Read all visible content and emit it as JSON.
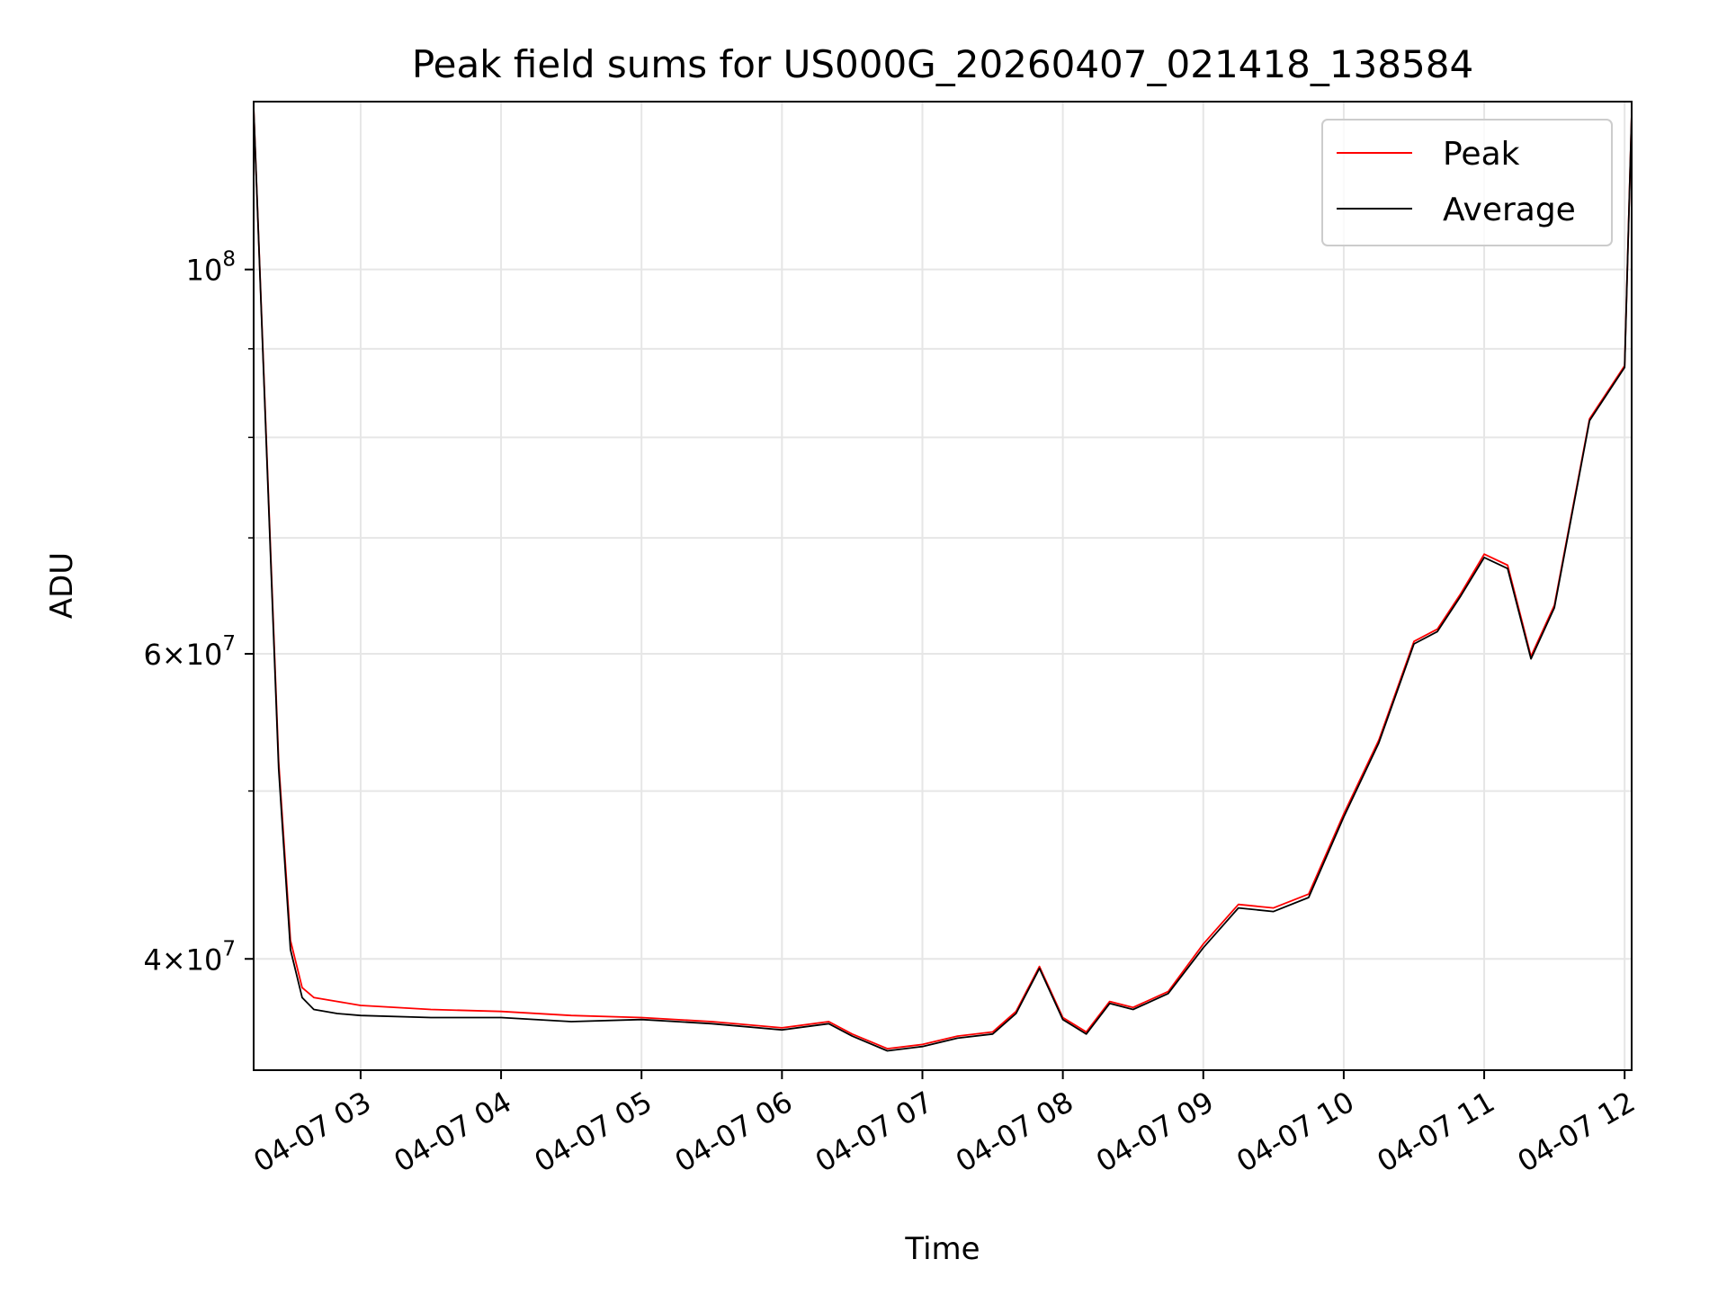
{
  "chart_data": {
    "type": "line",
    "title": "Peak field sums for US000G_20260407_021418_138584",
    "xlabel": "Time",
    "ylabel": "ADU",
    "y_scale": "log",
    "xlim": [
      "2026-04-07T02:14:18",
      "2026-04-07T12:03:00"
    ],
    "ylim": [
      34500000,
      125000000
    ],
    "grid": true,
    "legend_position": "top-right",
    "x_ticks": [
      {
        "value": "2026-04-07T03:00:00",
        "label": "04-07 03"
      },
      {
        "value": "2026-04-07T04:00:00",
        "label": "04-07 04"
      },
      {
        "value": "2026-04-07T05:00:00",
        "label": "04-07 05"
      },
      {
        "value": "2026-04-07T06:00:00",
        "label": "04-07 06"
      },
      {
        "value": "2026-04-07T07:00:00",
        "label": "04-07 07"
      },
      {
        "value": "2026-04-07T08:00:00",
        "label": "04-07 08"
      },
      {
        "value": "2026-04-07T09:00:00",
        "label": "04-07 09"
      },
      {
        "value": "2026-04-07T10:00:00",
        "label": "04-07 10"
      },
      {
        "value": "2026-04-07T11:00:00",
        "label": "04-07 11"
      },
      {
        "value": "2026-04-07T12:00:00",
        "label": "04-07 12"
      }
    ],
    "y_major_ticks": [
      {
        "value": 40000000,
        "mantissa": "4",
        "exponent": "7"
      },
      {
        "value": 60000000,
        "mantissa": "6",
        "exponent": "7"
      },
      {
        "value": 100000000,
        "mantissa": "",
        "exponent": "8"
      }
    ],
    "y_minor_gridlines": [
      50000000,
      70000000,
      80000000,
      90000000
    ],
    "series": [
      {
        "name": "Peak",
        "color": "#ff0000",
        "x": [
          "2026-04-07T02:14:18",
          "2026-04-07T02:20:00",
          "2026-04-07T02:25:00",
          "2026-04-07T02:30:00",
          "2026-04-07T02:35:00",
          "2026-04-07T02:40:00",
          "2026-04-07T02:50:00",
          "2026-04-07T03:00:00",
          "2026-04-07T03:30:00",
          "2026-04-07T04:00:00",
          "2026-04-07T04:30:00",
          "2026-04-07T05:00:00",
          "2026-04-07T05:30:00",
          "2026-04-07T06:00:00",
          "2026-04-07T06:20:00",
          "2026-04-07T06:30:00",
          "2026-04-07T06:45:00",
          "2026-04-07T07:00:00",
          "2026-04-07T07:15:00",
          "2026-04-07T07:30:00",
          "2026-04-07T07:40:00",
          "2026-04-07T07:50:00",
          "2026-04-07T08:00:00",
          "2026-04-07T08:10:00",
          "2026-04-07T08:20:00",
          "2026-04-07T08:30:00",
          "2026-04-07T08:45:00",
          "2026-04-07T09:00:00",
          "2026-04-07T09:15:00",
          "2026-04-07T09:30:00",
          "2026-04-07T09:45:00",
          "2026-04-07T10:00:00",
          "2026-04-07T10:15:00",
          "2026-04-07T10:30:00",
          "2026-04-07T10:40:00",
          "2026-04-07T10:50:00",
          "2026-04-07T11:00:00",
          "2026-04-07T11:10:00",
          "2026-04-07T11:20:00",
          "2026-04-07T11:30:00",
          "2026-04-07T11:45:00",
          "2026-04-07T12:00:00",
          "2026-04-07T12:03:00"
        ],
        "values": [
          124000000,
          78000000,
          52000000,
          41000000,
          38500000,
          38000000,
          37800000,
          37600000,
          37400000,
          37300000,
          37100000,
          37000000,
          36800000,
          36500000,
          36800000,
          36200000,
          35500000,
          35700000,
          36100000,
          36300000,
          37300000,
          39600000,
          37000000,
          36300000,
          37800000,
          37500000,
          38300000,
          40800000,
          43000000,
          42800000,
          43600000,
          48500000,
          53500000,
          61000000,
          62000000,
          65000000,
          68500000,
          67500000,
          59800000,
          64000000,
          82000000,
          88000000,
          123000000
        ]
      },
      {
        "name": "Average",
        "color": "#000000",
        "x": [
          "2026-04-07T02:14:18",
          "2026-04-07T02:20:00",
          "2026-04-07T02:25:00",
          "2026-04-07T02:30:00",
          "2026-04-07T02:35:00",
          "2026-04-07T02:40:00",
          "2026-04-07T02:50:00",
          "2026-04-07T03:00:00",
          "2026-04-07T03:30:00",
          "2026-04-07T04:00:00",
          "2026-04-07T04:30:00",
          "2026-04-07T05:00:00",
          "2026-04-07T05:30:00",
          "2026-04-07T06:00:00",
          "2026-04-07T06:20:00",
          "2026-04-07T06:30:00",
          "2026-04-07T06:45:00",
          "2026-04-07T07:00:00",
          "2026-04-07T07:15:00",
          "2026-04-07T07:30:00",
          "2026-04-07T07:40:00",
          "2026-04-07T07:50:00",
          "2026-04-07T08:00:00",
          "2026-04-07T08:10:00",
          "2026-04-07T08:20:00",
          "2026-04-07T08:30:00",
          "2026-04-07T08:45:00",
          "2026-04-07T09:00:00",
          "2026-04-07T09:15:00",
          "2026-04-07T09:30:00",
          "2026-04-07T09:45:00",
          "2026-04-07T10:00:00",
          "2026-04-07T10:15:00",
          "2026-04-07T10:30:00",
          "2026-04-07T10:40:00",
          "2026-04-07T10:50:00",
          "2026-04-07T11:00:00",
          "2026-04-07T11:10:00",
          "2026-04-07T11:20:00",
          "2026-04-07T11:30:00",
          "2026-04-07T11:45:00",
          "2026-04-07T12:00:00",
          "2026-04-07T12:03:00"
        ],
        "values": [
          124000000,
          77500000,
          51500000,
          40500000,
          38000000,
          37400000,
          37200000,
          37100000,
          37000000,
          37000000,
          36800000,
          36900000,
          36700000,
          36400000,
          36700000,
          36100000,
          35400000,
          35600000,
          36000000,
          36200000,
          37200000,
          39500000,
          36900000,
          36200000,
          37700000,
          37400000,
          38200000,
          40600000,
          42800000,
          42600000,
          43400000,
          48300000,
          53300000,
          60800000,
          61800000,
          64800000,
          68200000,
          67200000,
          59600000,
          63800000,
          81800000,
          87800000,
          123000000
        ]
      }
    ]
  }
}
